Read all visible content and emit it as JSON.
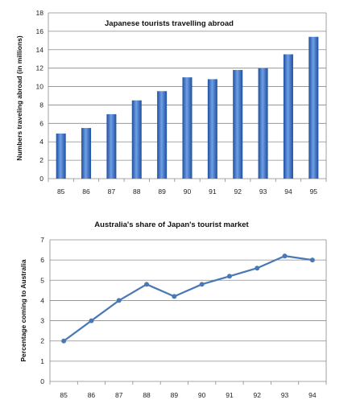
{
  "chart_data": [
    {
      "type": "bar",
      "title": "Japanese tourists travelling abroad",
      "xlabel": "",
      "ylabel": "Numbers traveling abroad (in millions)",
      "categories": [
        "85",
        "86",
        "87",
        "88",
        "89",
        "90",
        "91",
        "92",
        "93",
        "94",
        "95"
      ],
      "values": [
        4.9,
        5.5,
        7.0,
        8.5,
        9.5,
        11.0,
        10.8,
        11.8,
        12.0,
        13.5,
        15.4
      ],
      "ylim": [
        0,
        18
      ],
      "yticks": [
        "0",
        "2",
        "4",
        "6",
        "8",
        "10",
        "12",
        "14",
        "16",
        "18"
      ],
      "grid": true,
      "colors": {
        "bar_light": "#6f9fe6",
        "bar_dark": "#1f4f9e",
        "grid": "#8a8a8a"
      }
    },
    {
      "type": "line",
      "title": "Australia's share of Japan's tourist market",
      "xlabel": "",
      "ylabel": "Percentage coming to Australia",
      "categories": [
        "85",
        "86",
        "87",
        "88",
        "89",
        "90",
        "91",
        "92",
        "93",
        "94"
      ],
      "values": [
        2.0,
        3.0,
        4.0,
        4.8,
        4.2,
        4.8,
        5.2,
        5.6,
        6.2,
        6.0
      ],
      "ylim": [
        0,
        7
      ],
      "yticks": [
        "0",
        "1",
        "2",
        "3",
        "4",
        "5",
        "6",
        "7"
      ],
      "grid": true,
      "colors": {
        "line": "#4a78b5",
        "marker": "#4a78b5",
        "grid": "#8a8a8a"
      }
    }
  ]
}
